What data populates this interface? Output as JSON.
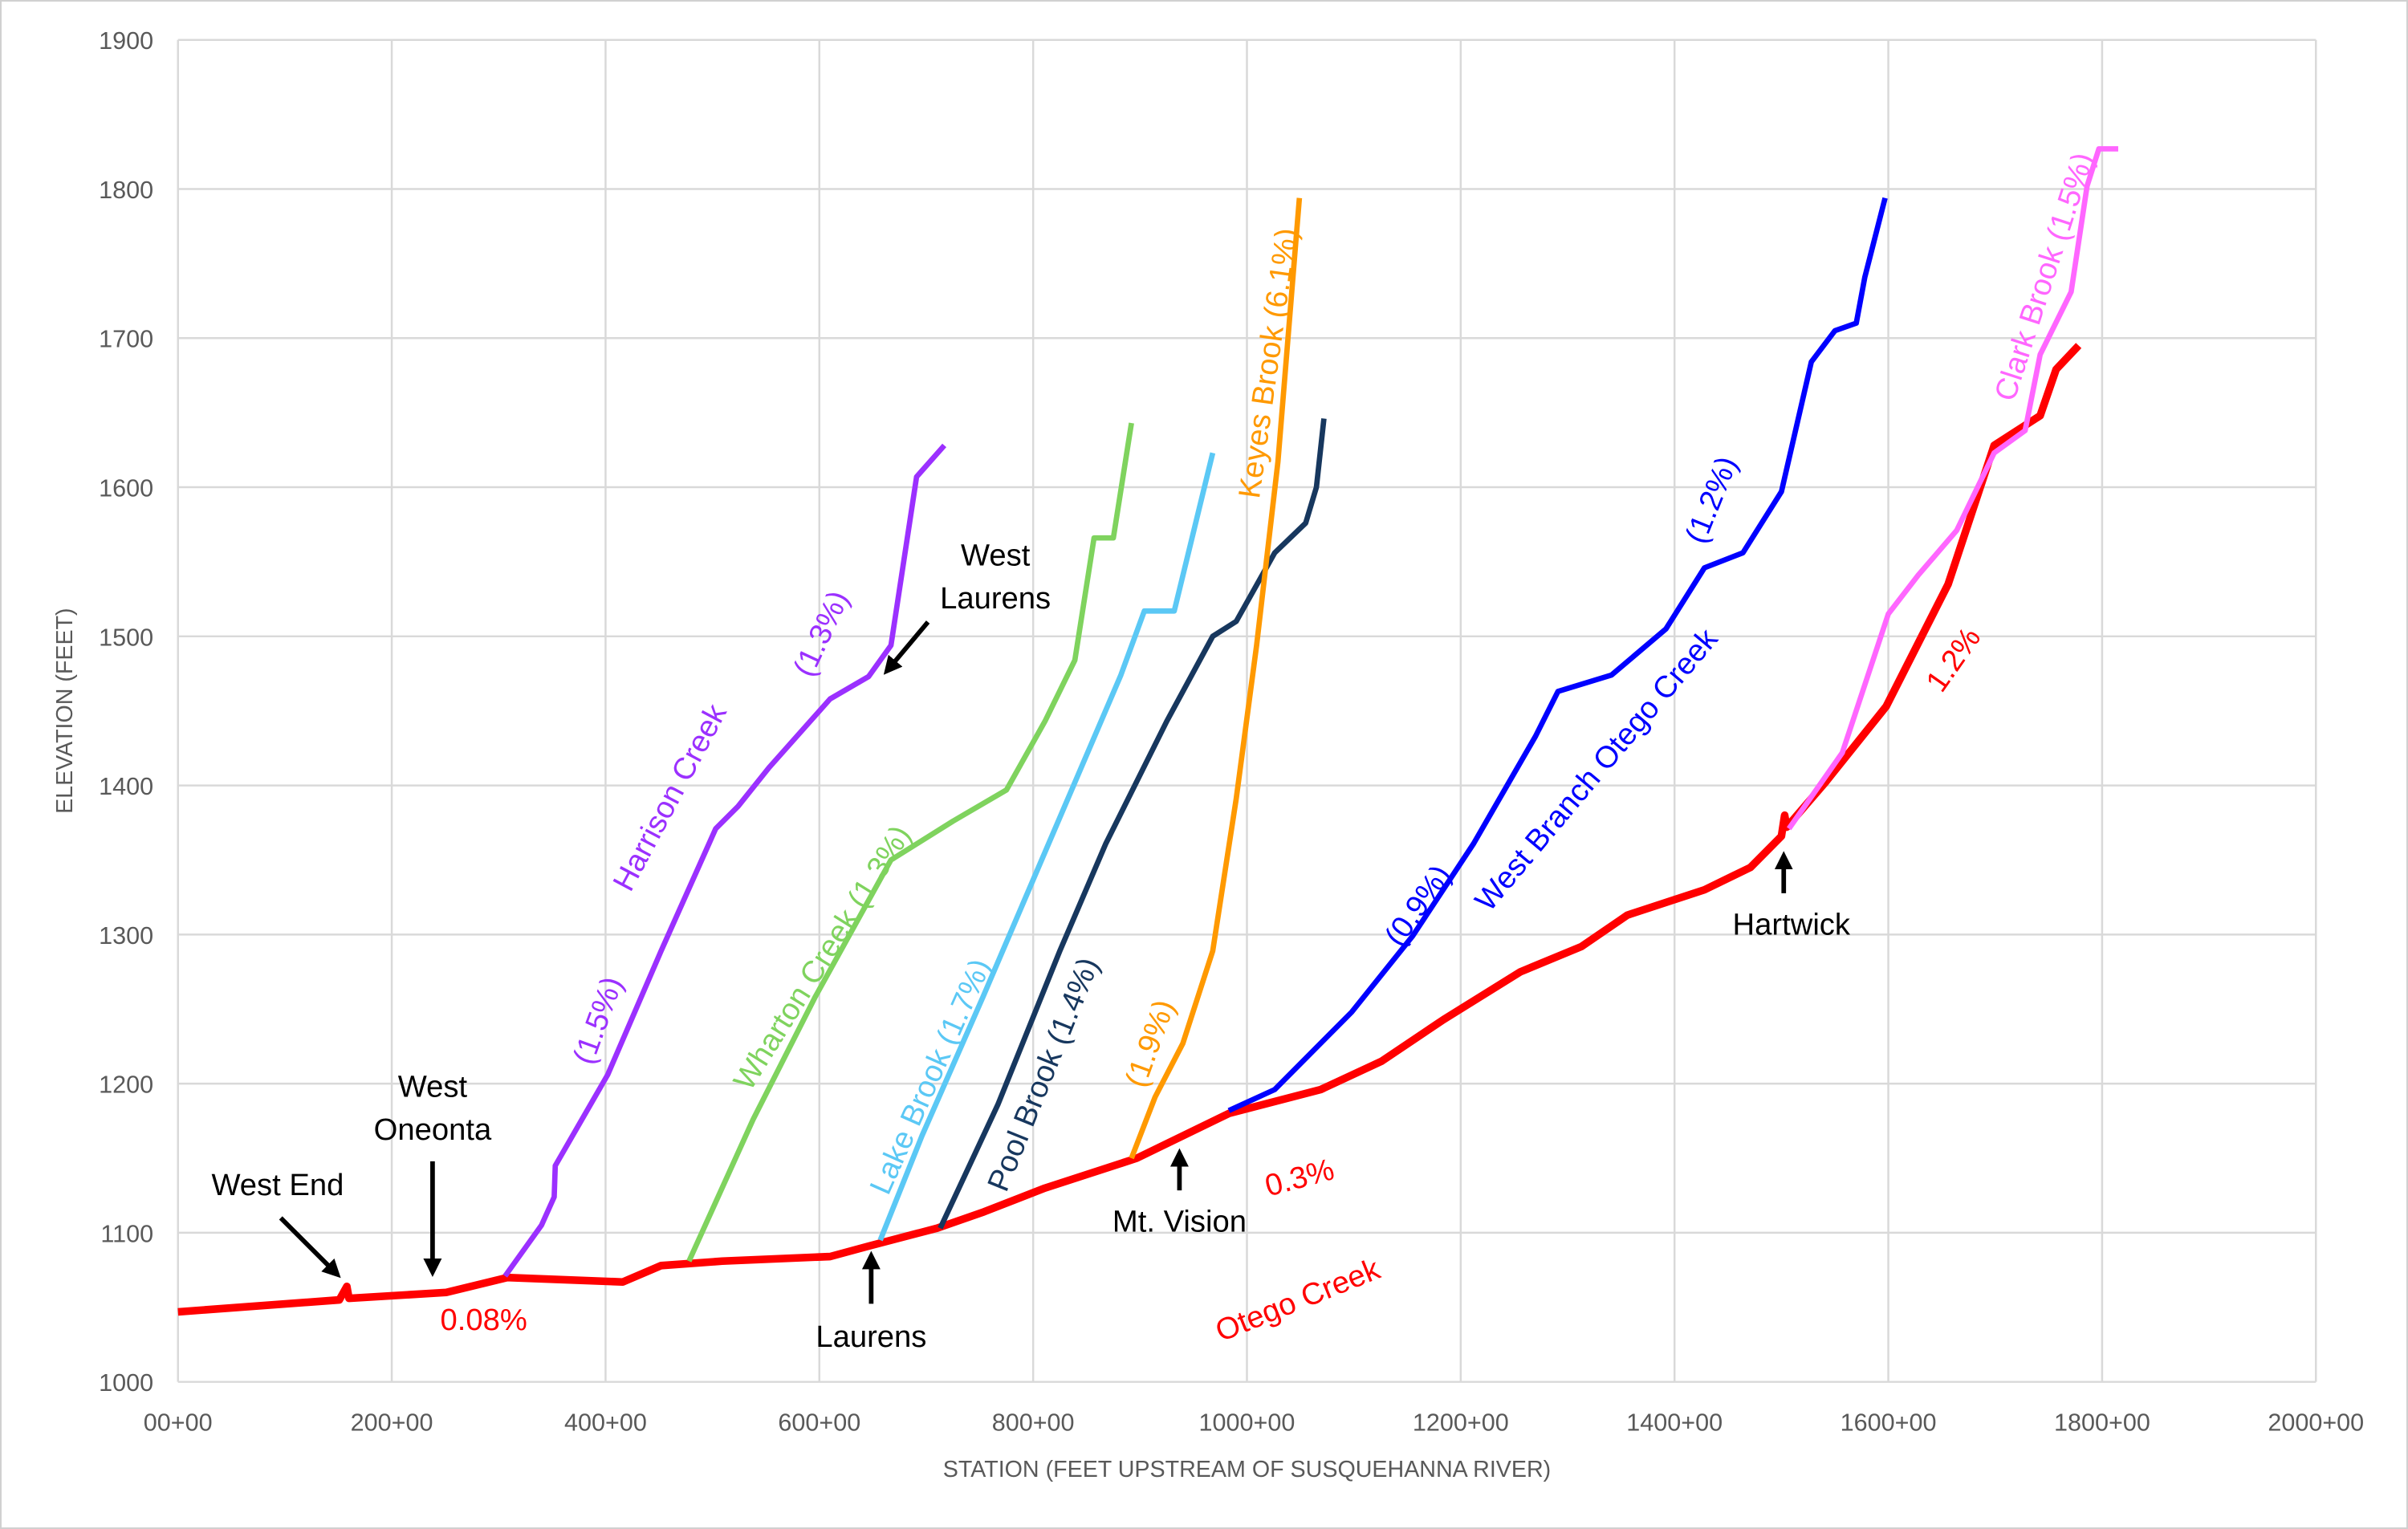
{
  "chart_data": {
    "type": "line",
    "title": "",
    "xlabel": "STATION (FEET UPSTREAM OF SUSQUEHANNA RIVER)",
    "ylabel": "ELEVATION (FEET)",
    "xlim": [
      0,
      2000
    ],
    "ylim": [
      1000,
      1900
    ],
    "x_units": "station (hundreds of feet)",
    "grid": true,
    "legend": "none",
    "x_ticks": [
      0,
      200,
      400,
      600,
      800,
      1000,
      1200,
      1400,
      1600,
      1800,
      2000
    ],
    "x_tick_labels": [
      "00+00",
      "200+00",
      "400+00",
      "600+00",
      "800+00",
      "1000+00",
      "1200+00",
      "1400+00",
      "1600+00",
      "1800+00",
      "2000+00"
    ],
    "y_ticks": [
      1000,
      1100,
      1200,
      1300,
      1400,
      1500,
      1600,
      1700,
      1800,
      1900
    ],
    "y_tick_labels": [
      "1000",
      "1100",
      "1200",
      "1300",
      "1400",
      "1500",
      "1600",
      "1700",
      "1800",
      "1900"
    ],
    "series": [
      {
        "name": "Otego Creek",
        "color": "#ff0000",
        "x": [
          0,
          151,
          158,
          160,
          251,
          308,
          416,
          452,
          509,
          610,
          646,
          710,
          754,
          811,
          897,
          983,
          1069,
          1126,
          1184,
          1256,
          1313,
          1356,
          1428,
          1471,
          1500,
          1503,
          1505,
          1541,
          1598,
          1656,
          1699,
          1742,
          1757,
          1778
        ],
        "y": [
          1047,
          1055,
          1064,
          1056,
          1060,
          1070,
          1067,
          1078,
          1081,
          1084,
          1091,
          1103,
          1114,
          1130,
          1150,
          1180,
          1196,
          1215,
          1243,
          1275,
          1292,
          1313,
          1330,
          1345,
          1366,
          1380,
          1372,
          1402,
          1453,
          1535,
          1628,
          1648,
          1679,
          1695
        ]
      },
      {
        "name": "Harrison Creek",
        "color": "#9b30ff",
        "x": [
          306,
          340,
          352,
          353,
          402,
          452,
          503,
          524,
          553,
          610,
          646,
          667,
          691,
          717
        ],
        "y": [
          1071,
          1105,
          1124,
          1145,
          1206,
          1289,
          1371,
          1386,
          1412,
          1458,
          1473,
          1494,
          1607,
          1628
        ]
      },
      {
        "name": "Wharton Creek",
        "color": "#7fd35e",
        "x": [
          478,
          538,
          596,
          667,
          725,
          775,
          811,
          839,
          857,
          875,
          892
        ],
        "y": [
          1081,
          1176,
          1258,
          1350,
          1376,
          1397,
          1443,
          1484,
          1566,
          1566,
          1643
        ]
      },
      {
        "name": "Lake Brook",
        "color": "#5bc8f5",
        "x": [
          657,
          696,
          753,
          796,
          839,
          882,
          904,
          932,
          968
        ],
        "y": [
          1095,
          1165,
          1258,
          1330,
          1402,
          1474,
          1517,
          1517,
          1623
        ]
      },
      {
        "name": "Pool Brook",
        "color": "#17375e",
        "x": [
          713,
          767,
          825,
          868,
          925,
          968,
          990,
          1026,
          1055,
          1065,
          1072
        ],
        "y": [
          1103,
          1186,
          1289,
          1361,
          1443,
          1500,
          1510,
          1556,
          1576,
          1600,
          1646
        ]
      },
      {
        "name": "Keyes Brook",
        "color": "#ff9900",
        "x": [
          892,
          914,
          940,
          968,
          990,
          1009,
          1029,
          1049
        ],
        "y": [
          1150,
          1191,
          1227,
          1289,
          1391,
          1494,
          1617,
          1794
        ]
      },
      {
        "name": "West Branch Otego Creek",
        "color": "#0000ff",
        "x": [
          983,
          1026,
          1098,
          1155,
          1212,
          1270,
          1291,
          1341,
          1392,
          1428,
          1464,
          1500,
          1528,
          1550,
          1570,
          1578,
          1597
        ],
        "y": [
          1182,
          1196,
          1248,
          1299,
          1361,
          1433,
          1463,
          1474,
          1505,
          1546,
          1556,
          1597,
          1684,
          1705,
          1710,
          1741,
          1794
        ]
      },
      {
        "name": "Clark Brook",
        "color": "#ff66ff",
        "x": [
          1507,
          1557,
          1600,
          1628,
          1664,
          1699,
          1728,
          1742,
          1771,
          1786,
          1797,
          1815
        ],
        "y": [
          1371,
          1422,
          1515,
          1541,
          1571,
          1623,
          1638,
          1689,
          1731,
          1802,
          1827,
          1827
        ]
      }
    ],
    "annotations": {
      "otego_creek": "Otego Creek",
      "harrison_creek": "Harrison Creek",
      "harrison_1": "(1.5%)",
      "harrison_2": "(1.3%)",
      "wharton": "Wharton Creek (1.3%)",
      "lake": "Lake Brook (1.7%)",
      "pool": "Pool Brook (1.4%)",
      "keyes": "Keyes Brook (6.1%)",
      "keyes_2": "(1.9%)",
      "wb_1": "(0.9%)",
      "wb_name": "West Branch Otego Creek",
      "wb_2": "(1.2%)",
      "clark": "Clark Brook (1.5%)",
      "otego_1": "0.08%",
      "otego_2": "0.3%",
      "otego_3": "1.2%",
      "west_end": "West End",
      "west_oneonta_1": "West",
      "west_oneonta_2": "Oneonta",
      "laurens": "Laurens",
      "west_laurens_1": "West",
      "west_laurens_2": "Laurens",
      "mt_vision": "Mt. Vision",
      "hartwick": "Hartwick"
    }
  }
}
